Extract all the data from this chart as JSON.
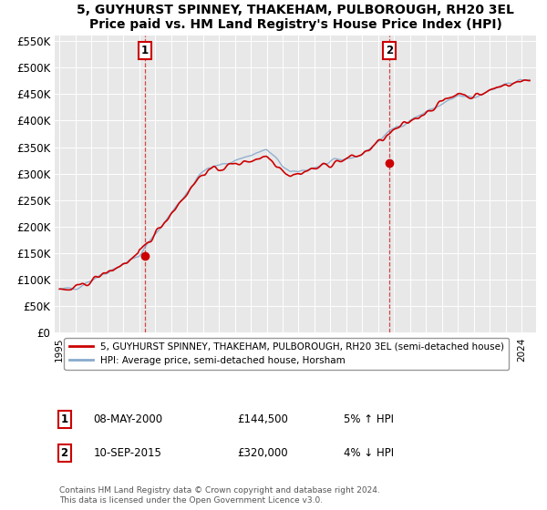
{
  "title": "5, GUYHURST SPINNEY, THAKEHAM, PULBOROUGH, RH20 3EL",
  "subtitle": "Price paid vs. HM Land Registry's House Price Index (HPI)",
  "ylim": [
    0,
    560000
  ],
  "yticks": [
    0,
    50000,
    100000,
    150000,
    200000,
    250000,
    300000,
    350000,
    400000,
    450000,
    500000,
    550000
  ],
  "ytick_labels": [
    "£0",
    "£50K",
    "£100K",
    "£150K",
    "£200K",
    "£250K",
    "£300K",
    "£350K",
    "£400K",
    "£450K",
    "£500K",
    "£550K"
  ],
  "sale1_year": 2000.36,
  "sale1_price": 144500,
  "sale2_year": 2015.69,
  "sale2_price": 320000,
  "line_color_red": "#cc0000",
  "line_color_blue": "#88aacc",
  "vline_color": "#cc0000",
  "background_color": "#e8e8e8",
  "legend_label_red": "5, GUYHURST SPINNEY, THAKEHAM, PULBOROUGH, RH20 3EL (semi-detached house)",
  "legend_label_blue": "HPI: Average price, semi-detached house, Horsham",
  "footer": "Contains HM Land Registry data © Crown copyright and database right 2024.\nThis data is licensed under the Open Government Licence v3.0.",
  "start_year": 1995,
  "end_year": 2024
}
